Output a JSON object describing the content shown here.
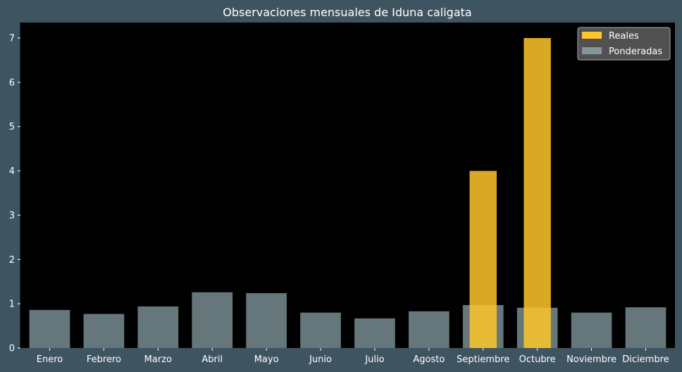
{
  "chart_data": {
    "type": "bar",
    "title": "Observaciones mensuales de Iduna caligata",
    "xlabel": "",
    "ylabel": "",
    "categories": [
      "Enero",
      "Febrero",
      "Marzo",
      "Abril",
      "Mayo",
      "Junio",
      "Julio",
      "Agosto",
      "Septiembre",
      "Octubre",
      "Noviembre",
      "Diciembre"
    ],
    "series": [
      {
        "name": "Reales",
        "color": "#ffc72c",
        "values": [
          0,
          0,
          0,
          0,
          0,
          0,
          0,
          0,
          4,
          7,
          0,
          0
        ]
      },
      {
        "name": "Ponderadas",
        "color": "#a8c6cc",
        "values": [
          0.86,
          0.77,
          0.94,
          1.26,
          1.24,
          0.8,
          0.67,
          0.83,
          0.97,
          0.91,
          0.8,
          0.92
        ]
      }
    ],
    "ylim": [
      0,
      7.35
    ],
    "yticks": [
      0,
      1,
      2,
      3,
      4,
      5,
      6,
      7
    ],
    "grid": false,
    "legend_position": "top-right",
    "plot_background": "#000000",
    "figure_background": "#3f5461"
  }
}
